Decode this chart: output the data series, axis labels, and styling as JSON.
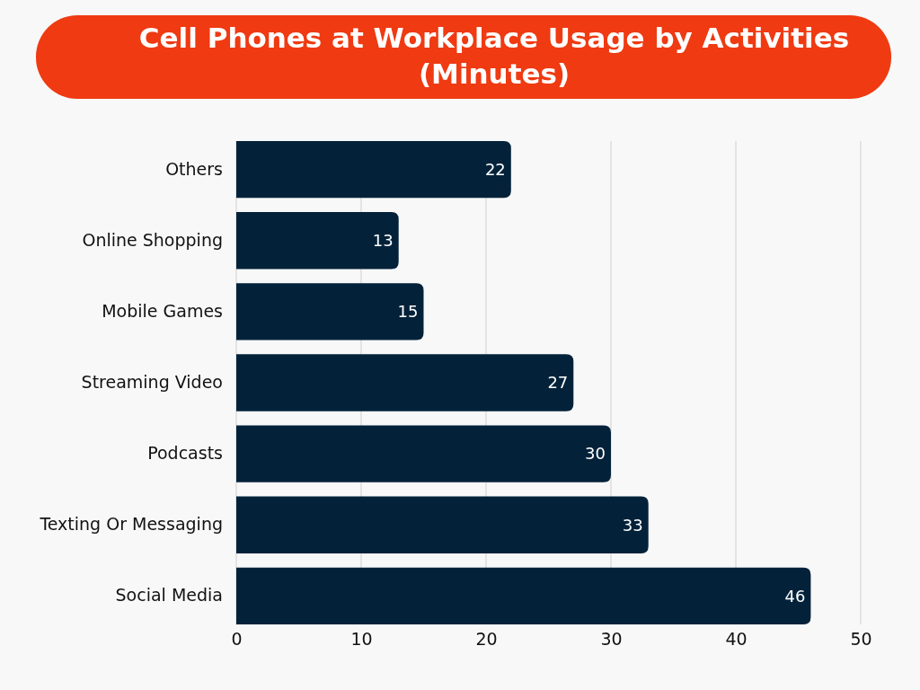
{
  "chart_data": {
    "type": "bar",
    "title": "Cell Phones at Workplace Usage by Activities (Minutes)",
    "orientation": "horizontal",
    "categories": [
      "Others",
      "Online Shopping",
      "Mobile Games",
      "Streaming Video",
      "Podcasts",
      "Texting Or Messaging",
      "Social Media"
    ],
    "values": [
      22,
      13,
      15,
      27,
      30,
      33,
      46
    ],
    "color": "#03223a",
    "xlim": [
      0,
      50
    ],
    "xticks": [
      0,
      10,
      20,
      30,
      40,
      50
    ],
    "grid": "x",
    "data_labels": true
  }
}
